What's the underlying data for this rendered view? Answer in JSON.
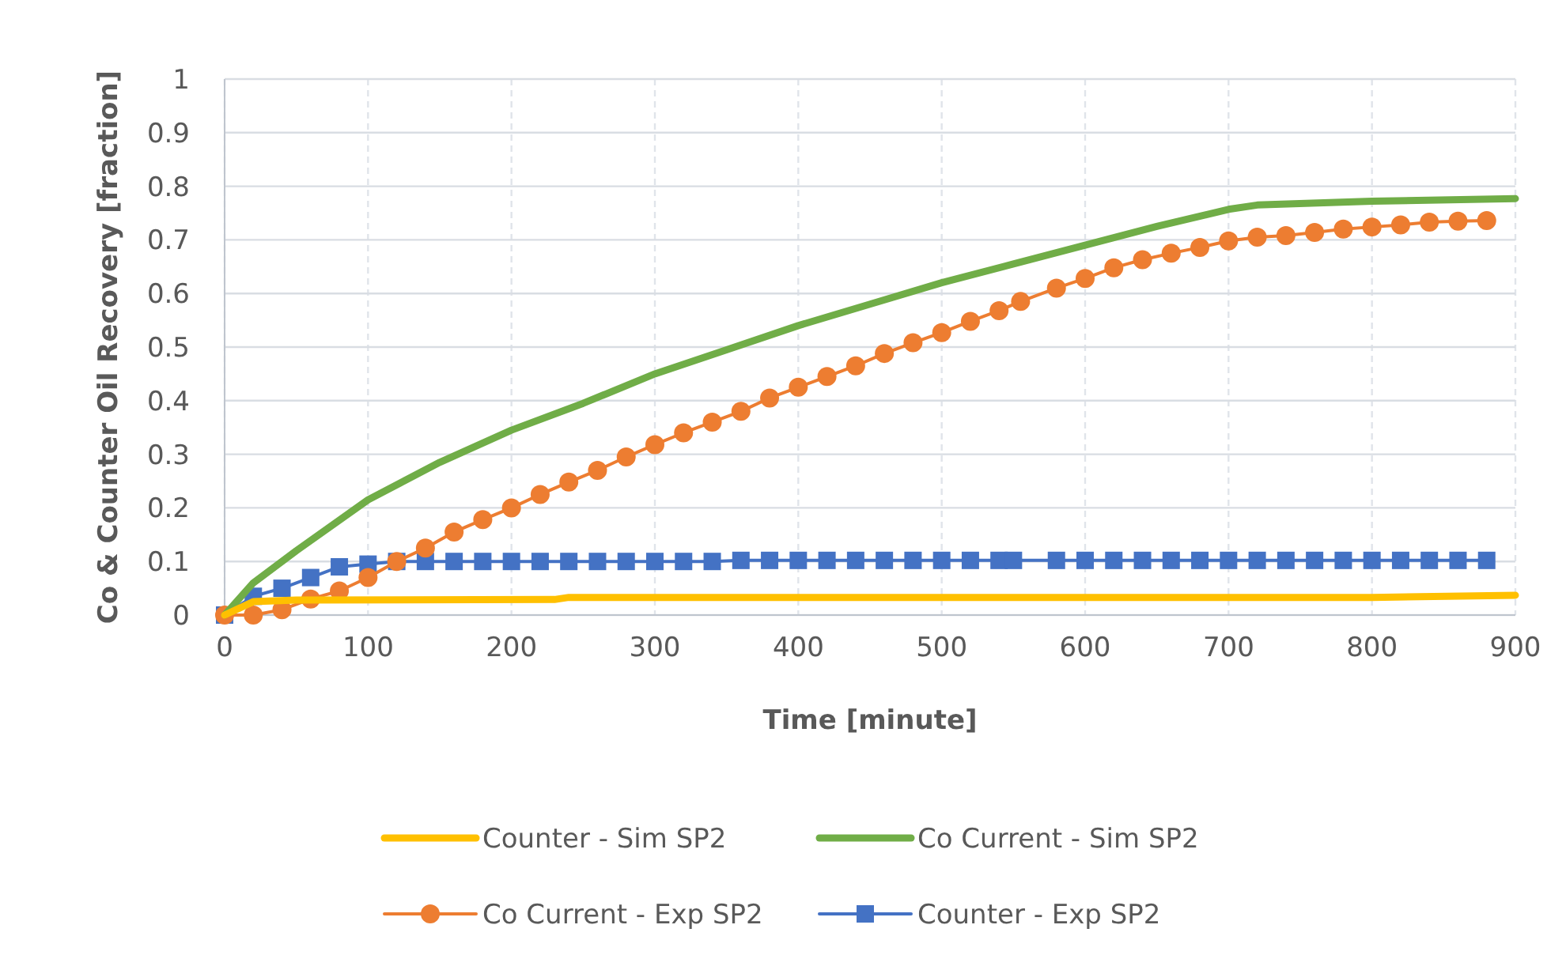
{
  "chart_data": {
    "type": "line",
    "xlabel": "Time [minute]",
    "ylabel": "Co & Counter Oil Recovery [fraction]",
    "xlim": [
      0,
      900
    ],
    "xticks": [
      0,
      100,
      200,
      300,
      400,
      500,
      600,
      700,
      800,
      900
    ],
    "ylim": [
      0,
      1
    ],
    "yticks": [
      0,
      0.1,
      0.2,
      0.3,
      0.4,
      0.5,
      0.6,
      0.7,
      0.8,
      0.9,
      1
    ],
    "grid": true,
    "legend": "bottom",
    "series": [
      {
        "name": "Counter - Sim SP2",
        "color": "#ffc000",
        "marker": "none",
        "x": [
          0,
          20,
          50,
          230,
          240,
          800,
          900
        ],
        "values": [
          0,
          0.025,
          0.028,
          0.029,
          0.033,
          0.033,
          0.037
        ]
      },
      {
        "name": "Co Current - Sim SP2",
        "color": "#70ad47",
        "marker": "none",
        "x": [
          0,
          20,
          50,
          100,
          150,
          200,
          250,
          300,
          350,
          400,
          450,
          500,
          550,
          600,
          650,
          700,
          720,
          800,
          900
        ],
        "values": [
          0,
          0.06,
          0.12,
          0.215,
          0.285,
          0.345,
          0.395,
          0.45,
          0.495,
          0.54,
          0.58,
          0.62,
          0.655,
          0.69,
          0.725,
          0.757,
          0.765,
          0.772,
          0.777
        ]
      },
      {
        "name": "Co Current - Exp SP2",
        "color": "#ed7d31",
        "marker": "circle",
        "x": [
          0,
          20,
          40,
          60,
          80,
          100,
          120,
          140,
          160,
          180,
          200,
          220,
          240,
          260,
          280,
          300,
          320,
          340,
          360,
          380,
          400,
          420,
          440,
          460,
          480,
          500,
          520,
          540,
          555,
          580,
          600,
          620,
          640,
          660,
          680,
          700,
          720,
          740,
          760,
          780,
          800,
          820,
          840,
          860,
          880
        ],
        "values": [
          0,
          0,
          0.01,
          0.03,
          0.045,
          0.07,
          0.1,
          0.125,
          0.155,
          0.178,
          0.2,
          0.225,
          0.248,
          0.27,
          0.295,
          0.318,
          0.34,
          0.36,
          0.38,
          0.405,
          0.425,
          0.445,
          0.465,
          0.488,
          0.508,
          0.527,
          0.548,
          0.568,
          0.585,
          0.61,
          0.628,
          0.648,
          0.663,
          0.675,
          0.686,
          0.698,
          0.705,
          0.708,
          0.714,
          0.72,
          0.724,
          0.728,
          0.733,
          0.735,
          0.736
        ]
      },
      {
        "name": "Counter - Exp SP2",
        "color": "#4472c4",
        "marker": "square",
        "x": [
          0,
          20,
          40,
          60,
          80,
          100,
          120,
          140,
          160,
          180,
          200,
          220,
          240,
          260,
          280,
          300,
          320,
          340,
          360,
          380,
          400,
          420,
          440,
          460,
          480,
          500,
          520,
          540,
          550,
          580,
          600,
          620,
          640,
          660,
          680,
          700,
          720,
          740,
          760,
          780,
          800,
          820,
          840,
          860,
          880
        ],
        "values": [
          0,
          0.035,
          0.05,
          0.07,
          0.09,
          0.095,
          0.1,
          0.1,
          0.1,
          0.1,
          0.1,
          0.1,
          0.1,
          0.1,
          0.1,
          0.1,
          0.1,
          0.1,
          0.102,
          0.102,
          0.102,
          0.102,
          0.102,
          0.102,
          0.102,
          0.102,
          0.102,
          0.102,
          0.102,
          0.102,
          0.102,
          0.102,
          0.102,
          0.102,
          0.102,
          0.102,
          0.102,
          0.102,
          0.102,
          0.102,
          0.102,
          0.102,
          0.102,
          0.102,
          0.102
        ]
      }
    ]
  }
}
